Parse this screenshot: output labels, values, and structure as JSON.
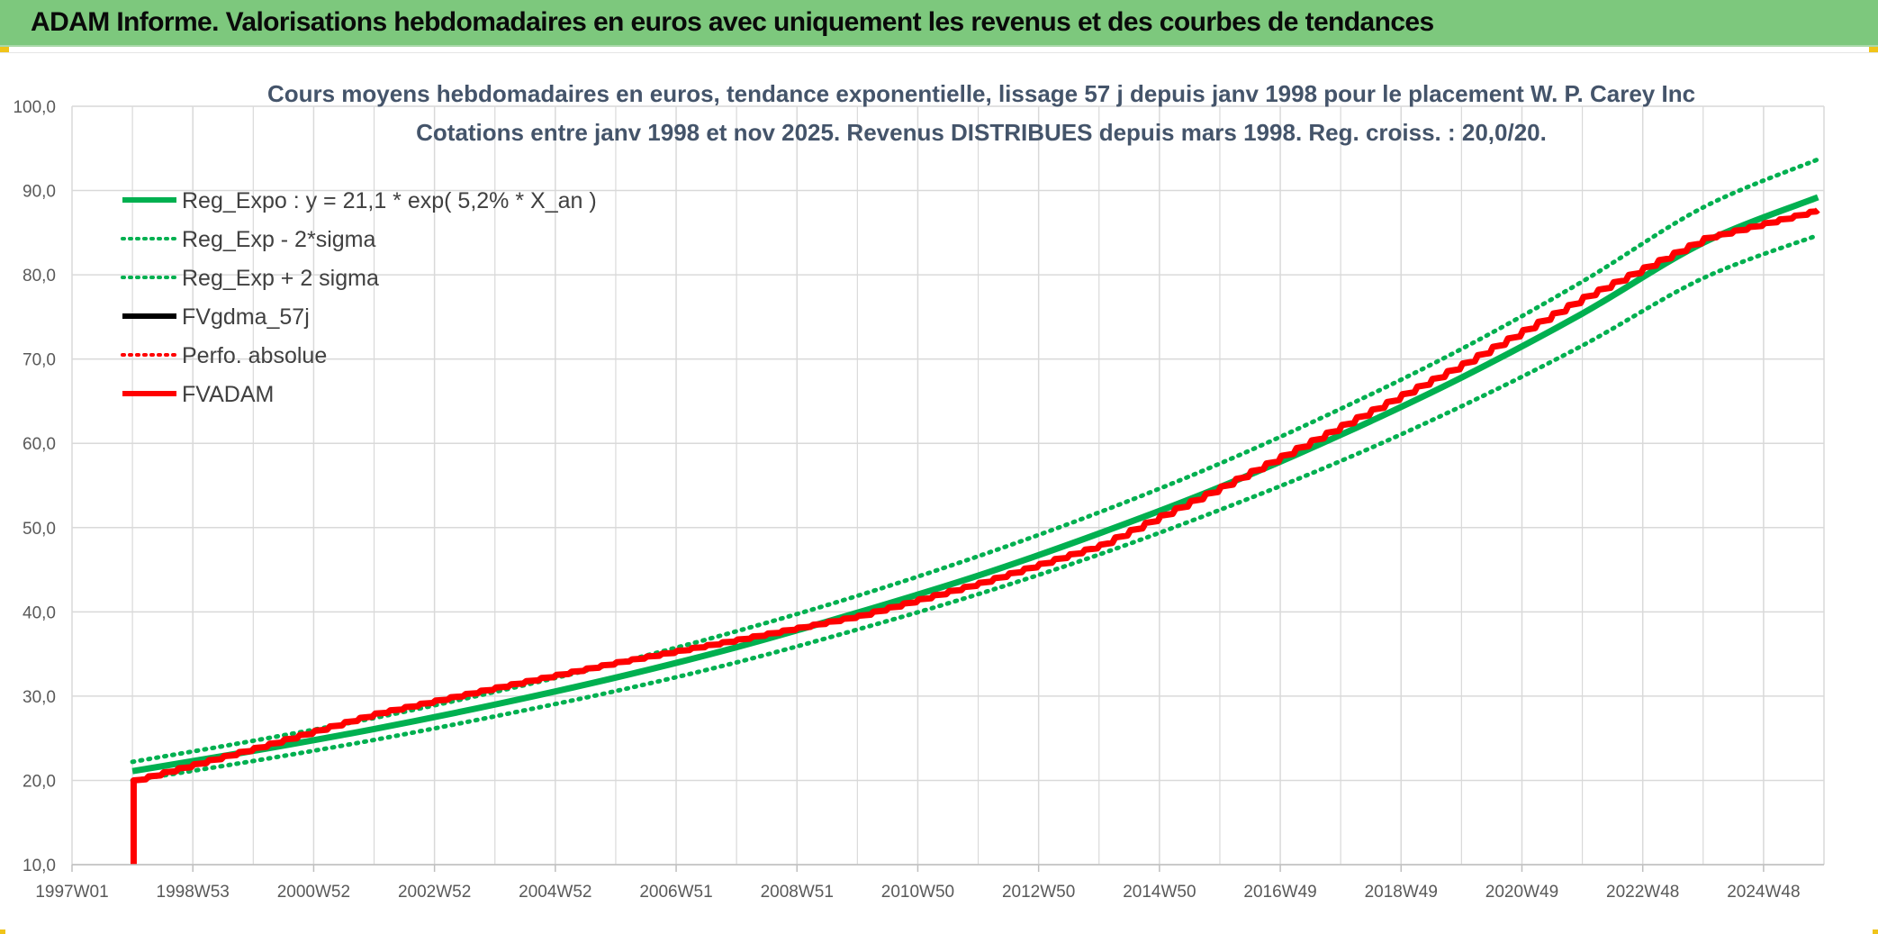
{
  "banner": {
    "title": "ADAM Informe. Valorisations hebdomadaires en euros avec uniquement les revenus et des courbes de tendances"
  },
  "colors": {
    "banner_bg": "#7dc87d",
    "green": "#00b050",
    "red": "#ff0000",
    "black": "#000000",
    "grid": "#d9d9d9",
    "title_text": "#44546a",
    "axis_text": "#595959"
  },
  "chart_data": {
    "type": "line",
    "title_line1": "Cours moyens hebdomadaires en euros, tendance exponentielle, lissage 57 j depuis janv 1998 pour le placement W. P. Carey Inc",
    "title_line2": "Cotations entre janv 1998 et nov 2025. Revenus DISTRIBUES depuis mars 1998. Reg. croiss. : 20,0/20.",
    "xlabel": "",
    "ylabel": "",
    "ylim": [
      10,
      100
    ],
    "yticks": [
      "10,0",
      "20,0",
      "30,0",
      "40,0",
      "50,0",
      "60,0",
      "70,0",
      "80,0",
      "90,0",
      "100,0"
    ],
    "xticks": [
      "1997W01",
      "1998W53",
      "2000W52",
      "2002W52",
      "2004W52",
      "2006W51",
      "2008W51",
      "2010W50",
      "2012W50",
      "2014W50",
      "2016W49",
      "2018W49",
      "2020W49",
      "2022W48",
      "2024W48"
    ],
    "x_range": [
      1997.0,
      2026.0
    ],
    "grid": true,
    "legend_position": "top-left",
    "series": [
      {
        "name": "Reg_Expo : y = 21,1 * exp( 5,2% *  X_an )",
        "style": "solid",
        "color": "#00b050",
        "x": [
          1998.0,
          2000.0,
          2002.0,
          2004.0,
          2006.0,
          2008.0,
          2010.0,
          2012.0,
          2014.0,
          2016.0,
          2018.0,
          2020.0,
          2022.0,
          2024.0,
          2025.9
        ],
        "y": [
          21.1,
          23.5,
          26.1,
          29.0,
          32.2,
          35.8,
          39.9,
          44.3,
          49.3,
          54.8,
          61.0,
          67.8,
          75.4,
          83.8,
          89.2
        ]
      },
      {
        "name": "Reg_Exp - 2*sigma",
        "style": "dotted",
        "color": "#00b050",
        "x": [
          1998.0,
          2000.0,
          2002.0,
          2004.0,
          2006.0,
          2008.0,
          2010.0,
          2012.0,
          2014.0,
          2016.0,
          2018.0,
          2020.0,
          2022.0,
          2024.0,
          2025.9
        ],
        "y": [
          20.0,
          22.3,
          24.8,
          27.6,
          30.6,
          34.0,
          37.9,
          42.1,
          46.8,
          52.1,
          57.9,
          64.4,
          71.6,
          79.6,
          84.7
        ]
      },
      {
        "name": "Reg_Exp + 2 sigma",
        "style": "dotted",
        "color": "#00b050",
        "x": [
          1998.0,
          2000.0,
          2002.0,
          2004.0,
          2006.0,
          2008.0,
          2010.0,
          2012.0,
          2014.0,
          2016.0,
          2018.0,
          2020.0,
          2022.0,
          2024.0,
          2025.9
        ],
        "y": [
          22.2,
          24.7,
          27.4,
          30.5,
          33.9,
          37.7,
          41.9,
          46.6,
          51.8,
          57.6,
          64.1,
          71.2,
          79.2,
          88.0,
          93.7
        ]
      },
      {
        "name": "FVgdma_57j",
        "style": "solid",
        "color": "#000000",
        "x": [],
        "y": []
      },
      {
        "name": "Perfo. absolue",
        "style": "dotted",
        "color": "#ff0000",
        "x": [],
        "y": []
      },
      {
        "name": "FVADAM",
        "style": "solid",
        "color": "#ff0000",
        "x": [
          1998.02,
          1998.02,
          2000.0,
          2002.0,
          2004.0,
          2006.0,
          2008.0,
          2010.0,
          2012.0,
          2014.0,
          2016.0,
          2018.0,
          2020.0,
          2022.0,
          2024.0,
          2025.9
        ],
        "y": [
          10.0,
          20.0,
          23.8,
          27.9,
          31.0,
          34.0,
          36.7,
          39.5,
          43.4,
          47.9,
          54.8,
          62.1,
          69.4,
          77.3,
          84.3,
          87.7
        ]
      }
    ]
  }
}
